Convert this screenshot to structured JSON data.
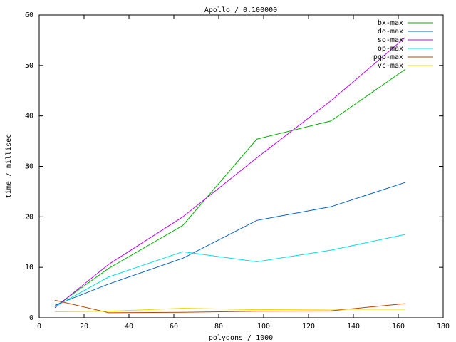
{
  "chart_data": {
    "type": "line",
    "title": "Apollo / 0.100000",
    "x_label": "polygons / 1000",
    "y_label": "time / millisec",
    "x": [
      7,
      31,
      64,
      97,
      130,
      163
    ],
    "series": [
      {
        "name": "bx-max",
        "color": "#00b000",
        "values": [
          2.2,
          9.8,
          18.3,
          35.4,
          39,
          49.2
        ]
      },
      {
        "name": "do-max",
        "color": "#0060d0",
        "values": [
          2.5,
          6.7,
          11.8,
          19.3,
          22,
          26.8
        ]
      },
      {
        "name": "so-max",
        "color": "#c000ff",
        "values": [
          2.0,
          10.6,
          20,
          31.7,
          43,
          55.5
        ]
      },
      {
        "name": "op-max",
        "color": "#00e0e0",
        "values": [
          2.2,
          8.1,
          13.1,
          11.1,
          13.4,
          16.5
        ]
      },
      {
        "name": "pqp-max",
        "color": "#c04000",
        "values": [
          3.5,
          1.0,
          1.1,
          1.3,
          1.4,
          2.8
        ]
      },
      {
        "name": "vc-max",
        "color": "#f0d800",
        "values": [
          1.2,
          1.3,
          1.9,
          1.6,
          1.7,
          1.7
        ]
      }
    ],
    "xlim": [
      0,
      180
    ],
    "xticks": [
      0,
      20,
      40,
      60,
      80,
      100,
      120,
      140,
      160,
      180
    ],
    "ylim": [
      0,
      60
    ],
    "yticks": [
      0,
      10,
      20,
      30,
      40,
      50,
      60
    ],
    "grid": false,
    "legend": "top-right"
  }
}
